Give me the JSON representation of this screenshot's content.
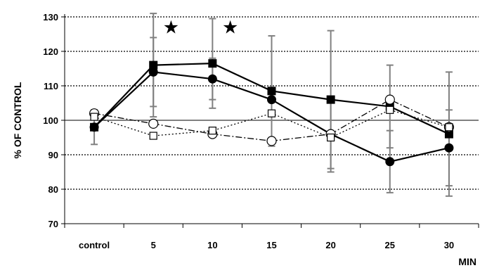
{
  "chart_data": {
    "type": "line",
    "title": "",
    "xlabel": "MIN",
    "ylabel": "% OF CONTROL",
    "categories": [
      "control",
      "5",
      "10",
      "15",
      "20",
      "25",
      "30"
    ],
    "ylim": [
      70,
      130
    ],
    "yticks": [
      70,
      80,
      90,
      100,
      110,
      120,
      130
    ],
    "grid": {
      "horizontal_dotted": [
        80,
        90,
        110,
        120,
        130
      ],
      "solid_baseline": 100
    },
    "series": [
      {
        "marker": "filled-square",
        "line": "solid",
        "color": "#000000",
        "values": [
          98,
          116,
          116.5,
          108.5,
          106,
          104,
          96
        ],
        "error": [
          5,
          15,
          13,
          16,
          20,
          12,
          18
        ]
      },
      {
        "marker": "filled-circle",
        "line": "solid",
        "color": "#000000",
        "values": [
          98,
          114,
          112,
          106,
          96,
          88,
          92
        ],
        "error": [
          null,
          10,
          6,
          null,
          11,
          9,
          11
        ]
      },
      {
        "marker": "open-circle",
        "line": "dash-dot",
        "color": "#000000",
        "values": [
          102,
          99,
          96,
          94,
          96,
          106,
          98
        ],
        "error": []
      },
      {
        "marker": "open-square",
        "line": "dotted",
        "color": "#000000",
        "values": [
          101,
          95.5,
          97,
          102,
          95,
          103,
          98
        ],
        "error": []
      }
    ],
    "annotations": [
      {
        "symbol": "★",
        "category_pos": 1.3,
        "y": 127
      },
      {
        "symbol": "★",
        "category_pos": 2.3,
        "y": 127
      }
    ]
  }
}
